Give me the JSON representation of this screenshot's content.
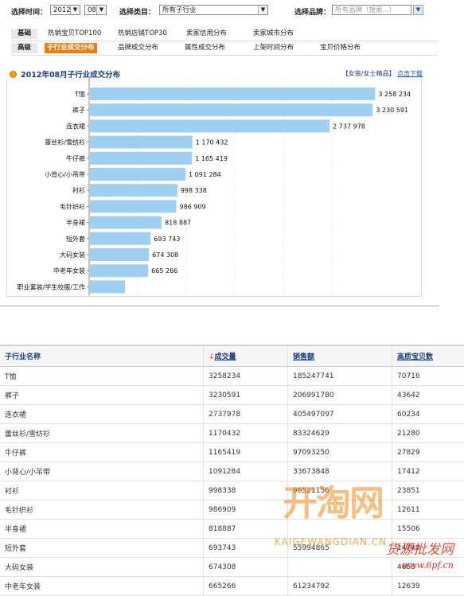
{
  "filters": {
    "time_label": "选择时间：",
    "year": "2012",
    "month": "08",
    "category_label": "选择类目：",
    "category": "所有子行业",
    "brand_label": "选择品牌：",
    "brand_placeholder": "所有品牌（搜索...）"
  },
  "tabs": {
    "row1": {
      "head": "基础",
      "items": [
        "热销宝贝TOP100",
        "热销店铺TOP30",
        "卖家信用分布",
        "卖家城市分布"
      ]
    },
    "row2": {
      "head": "高级",
      "items": [
        "子行业成交分布",
        "品牌成交分布",
        "属性成交分布",
        "上架时间分布",
        "宝贝价格分布"
      ]
    }
  },
  "chart_header": {
    "title": "2012年08月子行业成交分布",
    "right_text": "【女装/女士精品】",
    "download": "点击下载"
  },
  "chart_data": {
    "type": "bar",
    "orientation": "horizontal",
    "categories": [
      "T恤",
      "裤子",
      "连衣裙",
      "蕾丝衫/雪纺衫",
      "牛仔裤",
      "小背心/小吊带",
      "衬衫",
      "毛针织衫",
      "半身裙",
      "短外套",
      "大码女装",
      "中老年女装",
      "职业套装/学生校服/工作"
    ],
    "values": [
      3258234,
      3230591,
      2737978,
      1170432,
      1165419,
      1091284,
      998338,
      986909,
      818887,
      693743,
      674308,
      665266,
      400000
    ],
    "value_labels": [
      "3 258 234",
      "3 230 591",
      "2 737 978",
      "1 170 432",
      "1 165 419",
      "1 091 284",
      "998 338",
      "986 909",
      "818 887",
      "693 743",
      "674 308",
      "665 266",
      ""
    ],
    "xlim": [
      0,
      3300000
    ],
    "grid": true,
    "bar_color": "#9fd0f1"
  },
  "table": {
    "headers": [
      "子行业名称",
      "成交量",
      "销售额",
      "高质宝贝数"
    ],
    "sort_arrow": "↓",
    "rows": [
      [
        "T恤",
        "3258234",
        "185247741",
        "70716"
      ],
      [
        "裤子",
        "3230591",
        "206991780",
        "43642"
      ],
      [
        "连衣裙",
        "2737978",
        "405497097",
        "60234"
      ],
      [
        "蕾丝衫/雪纺衫",
        "1170432",
        "83324629",
        "21280"
      ],
      [
        "牛仔裤",
        "1165419",
        "97093250",
        "27829"
      ],
      [
        "小背心/小吊带",
        "1091284",
        "33673848",
        "17412"
      ],
      [
        "衬衫",
        "998338",
        "96521156",
        "23851"
      ],
      [
        "毛针织衫",
        "986909",
        "",
        "12611"
      ],
      [
        "半身裙",
        "818887",
        "",
        "15506"
      ],
      [
        "短外套",
        "693743",
        "55994865",
        "14740"
      ],
      [
        "大码女装",
        "674308",
        "",
        "4653"
      ],
      [
        "中老年女装",
        "665266",
        "61234792",
        "12639"
      ]
    ]
  },
  "watermark": {
    "logo": "开淘网",
    "latin": "KAIGEWANGDIAN.CN",
    "cn": "货源批发网",
    "url": "www.6pf.cn"
  }
}
